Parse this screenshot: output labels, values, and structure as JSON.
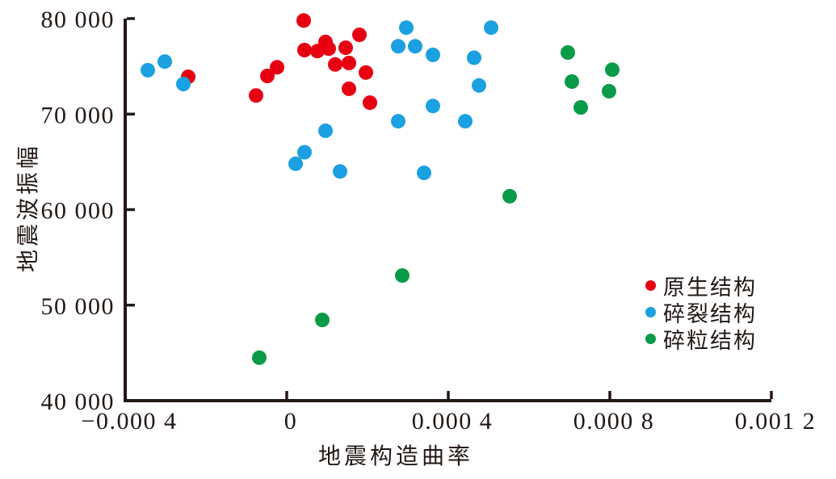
{
  "figure": {
    "background": "#ffffff",
    "axis_color": "#231815",
    "text_color": "#231815"
  },
  "chart_data": {
    "type": "scatter",
    "title": "",
    "xlabel": "地震构造曲率",
    "ylabel": "地震波振幅",
    "xlim": [
      -0.0004,
      0.0012
    ],
    "ylim": [
      40000,
      80000
    ],
    "grid": false,
    "legend_position": "inside-right",
    "x_ticks": [
      {
        "value": -0.0004,
        "label": "−0.000 4",
        "mark": false
      },
      {
        "value": 0,
        "label": "0",
        "mark": true
      },
      {
        "value": 0.0004,
        "label": "0.000 4",
        "mark": true
      },
      {
        "value": 0.0008,
        "label": "0.000 8",
        "mark": true
      },
      {
        "value": 0.0012,
        "label": "0.001 2",
        "mark": true
      }
    ],
    "y_ticks": [
      {
        "value": 80000,
        "label": "80 000",
        "mark": true
      },
      {
        "value": 70000,
        "label": "70 000",
        "mark": true
      },
      {
        "value": 60000,
        "label": "60 000",
        "mark": true
      },
      {
        "value": 50000,
        "label": "50 000",
        "mark": true
      },
      {
        "value": 40000,
        "label": "40 000",
        "mark": false
      }
    ],
    "marker": {
      "shape": "circle",
      "radius": 9
    },
    "series": [
      {
        "name": "原生结构",
        "color": "#e60012",
        "points": [
          [
            -0.000244,
            73900
          ],
          [
            -7.6e-05,
            71950
          ],
          [
            -4.8e-05,
            74000
          ],
          [
            -2.4e-05,
            74900
          ],
          [
            4.2e-05,
            79800
          ],
          [
            4.4e-05,
            76700
          ],
          [
            7.6e-05,
            76600
          ],
          [
            9.6e-05,
            77550
          ],
          [
            0.000104,
            76850
          ],
          [
            0.000146,
            76950
          ],
          [
            0.00012,
            75200
          ],
          [
            0.000154,
            75350
          ],
          [
            0.00018,
            78300
          ],
          [
            0.000154,
            72650
          ],
          [
            0.000196,
            74350
          ],
          [
            0.000206,
            71200
          ]
        ]
      },
      {
        "name": "碎裂结构",
        "color": "#1ba0e1",
        "points": [
          [
            -0.000344,
            74600
          ],
          [
            -0.000302,
            75500
          ],
          [
            -0.000256,
            73150
          ],
          [
            2.2e-05,
            64800
          ],
          [
            4.4e-05,
            66000
          ],
          [
            9.6e-05,
            68250
          ],
          [
            0.000132,
            64000
          ],
          [
            0.000276,
            77100
          ],
          [
            0.000296,
            79050
          ],
          [
            0.000318,
            77100
          ],
          [
            0.000362,
            76200
          ],
          [
            0.000464,
            75900
          ],
          [
            0.000506,
            79050
          ],
          [
            0.000476,
            73000
          ],
          [
            0.000362,
            70850
          ],
          [
            0.000276,
            69250
          ],
          [
            0.000442,
            69250
          ],
          [
            0.00034,
            63850
          ]
        ]
      },
      {
        "name": "碎粒结构",
        "color": "#0a9b48",
        "points": [
          [
            -6.8e-05,
            44500
          ],
          [
            8.8e-05,
            48450
          ],
          [
            0.000286,
            53100
          ],
          [
            0.000552,
            61400
          ],
          [
            0.000696,
            76450
          ],
          [
            0.000706,
            73400
          ],
          [
            0.000728,
            70700
          ],
          [
            0.000798,
            72400
          ],
          [
            0.000806,
            74650
          ]
        ]
      }
    ]
  }
}
